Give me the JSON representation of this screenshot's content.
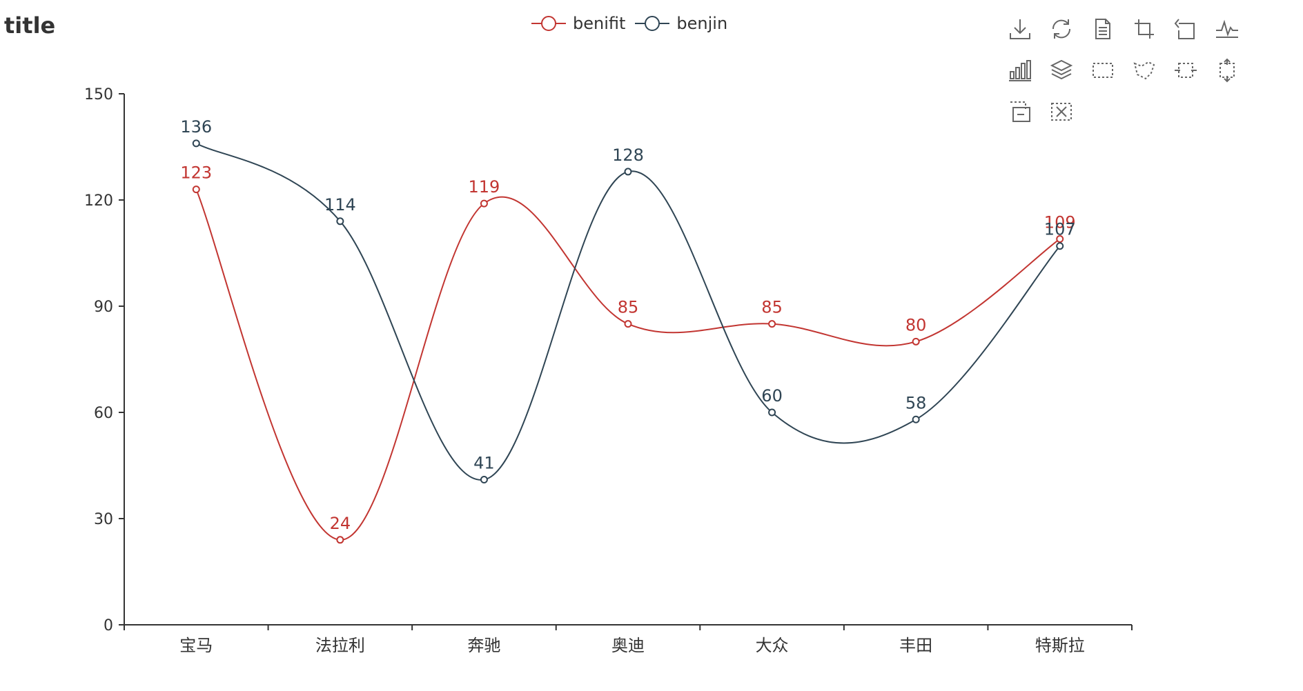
{
  "title": "title",
  "colors": {
    "benifit": "#c23531",
    "benjin": "#2f4554",
    "axis": "#333333",
    "toolbox": "#666666"
  },
  "legend": [
    {
      "name": "benifit",
      "color": "#c23531"
    },
    {
      "name": "benjin",
      "color": "#2f4554"
    }
  ],
  "toolbox": {
    "rows": [
      [
        "download-icon",
        "refresh-icon",
        "document-icon",
        "crop-icon",
        "undo-icon",
        "line-chart-icon"
      ],
      [
        "bar-chart-icon",
        "stack-icon",
        "rect-select-icon",
        "lasso-select-icon",
        "keep-select-icon",
        "expand-select-icon"
      ],
      [
        "zoom-in-icon",
        "clear-select-icon"
      ]
    ]
  },
  "chart_data": {
    "type": "line",
    "smooth": true,
    "categories": [
      "宝马",
      "法拉利",
      "奔驰",
      "奥迪",
      "大众",
      "丰田",
      "特斯拉"
    ],
    "ylim": [
      0,
      150
    ],
    "yticks": [
      0,
      30,
      60,
      90,
      120,
      150
    ],
    "grid": false,
    "legend_position": "top-center",
    "show_data_labels": true,
    "series": [
      {
        "name": "benifit",
        "color": "#c23531",
        "values": [
          123,
          24,
          119,
          85,
          85,
          80,
          109
        ]
      },
      {
        "name": "benjin",
        "color": "#2f4554",
        "values": [
          136,
          114,
          41,
          128,
          60,
          58,
          107
        ]
      }
    ]
  }
}
